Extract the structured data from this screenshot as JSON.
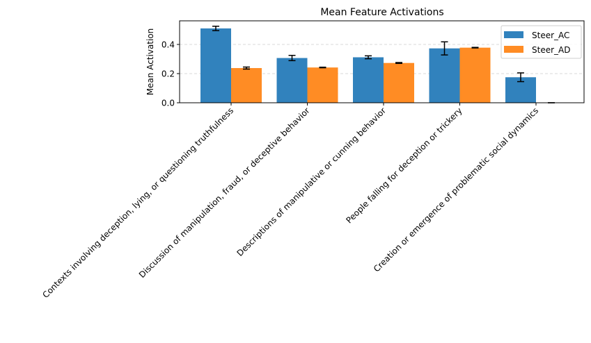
{
  "chart_data": {
    "type": "bar",
    "title": "Mean Feature Activations",
    "xlabel": "",
    "ylabel": "Mean Activation",
    "ylim": [
      0,
      0.562
    ],
    "yticks": [
      0.0,
      0.2,
      0.4
    ],
    "ytick_labels": [
      "0.0",
      "0.2",
      "0.4"
    ],
    "grid": "y-dashed",
    "legend_position": "top-right",
    "categories": [
      "Contexts involving deception, lying, or questioning truthfulness",
      "Discussion of manipulation, fraud, or deceptive behavior",
      "Descriptions of manipulative or cunning behavior",
      "People falling for deception or trickery",
      "Creation or emergence of problematic social dynamics"
    ],
    "series": [
      {
        "name": "Steer_AC",
        "color": "#3182bd",
        "values": [
          0.51,
          0.307,
          0.312,
          0.373,
          0.175
        ],
        "errors": [
          0.015,
          0.018,
          0.01,
          0.045,
          0.03
        ]
      },
      {
        "name": "Steer_AD",
        "color": "#ff8c24",
        "values": [
          0.238,
          0.242,
          0.273,
          0.378,
          0.0
        ],
        "errors": [
          0.007,
          0.002,
          0.003,
          0.002,
          0.0
        ]
      }
    ]
  }
}
